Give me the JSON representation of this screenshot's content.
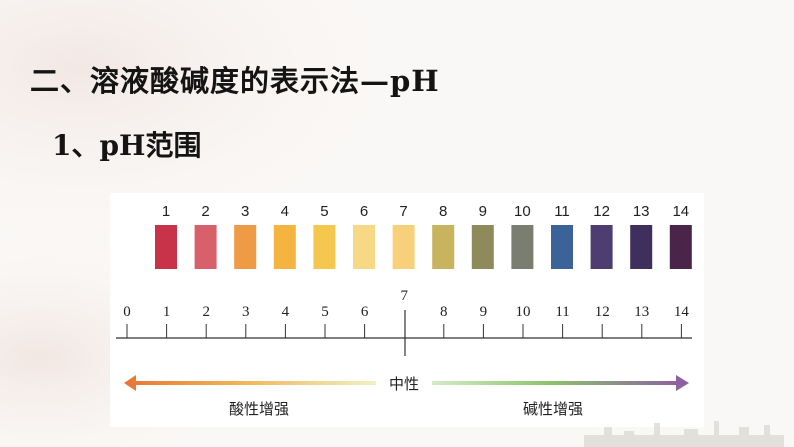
{
  "heading": {
    "section_title": "二、溶液酸碱度的表示法—pH",
    "subsection_title": "1、pH范围"
  },
  "ph_strip": {
    "labels": [
      "1",
      "2",
      "3",
      "4",
      "5",
      "6",
      "7",
      "8",
      "9",
      "10",
      "11",
      "12",
      "13",
      "14"
    ],
    "colors": [
      "#c8334a",
      "#d8606b",
      "#ef9a44",
      "#f5b340",
      "#f6c74e",
      "#f7d985",
      "#f7d07a",
      "#c8b45e",
      "#8e8a5c",
      "#7a7e70",
      "#3c6397",
      "#4e3d70",
      "#3f2f5c",
      "#4b2449"
    ]
  },
  "ph_scale": {
    "ticks": [
      "0",
      "1",
      "2",
      "3",
      "4",
      "5",
      "6",
      "7",
      "8",
      "9",
      "10",
      "11",
      "12",
      "13",
      "14"
    ]
  },
  "gradient_bar": {
    "neutral_label": "中性",
    "acid_label": "酸性增强",
    "base_label": "碱性增强",
    "acid_color": "#e87c3a",
    "base_color": "#8b5a9e"
  }
}
